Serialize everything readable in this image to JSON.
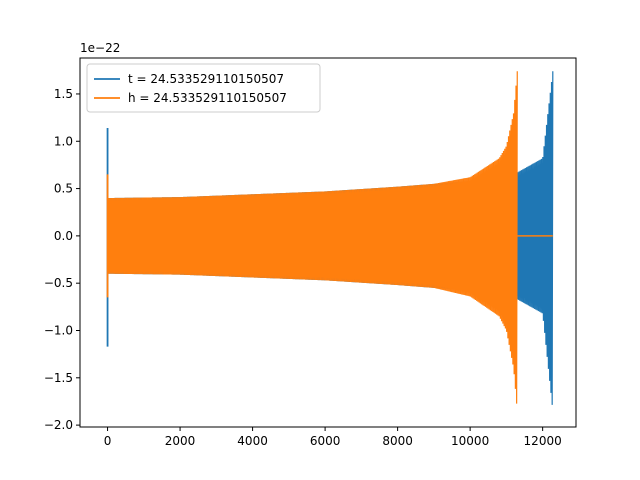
{
  "chart_data": {
    "type": "line",
    "title": "",
    "xlabel": "",
    "ylabel": "",
    "y_offset_label": "1e−22",
    "xlim": [
      -760,
      12920
    ],
    "ylim": [
      -2.02,
      1.88
    ],
    "x_ticks": [
      0,
      2000,
      4000,
      6000,
      8000,
      10000,
      12000
    ],
    "x_tick_labels": [
      "0",
      "2000",
      "4000",
      "6000",
      "8000",
      "10000",
      "12000"
    ],
    "y_ticks": [
      -2.0,
      -1.5,
      -1.0,
      -0.5,
      0.0,
      0.5,
      1.0,
      1.5
    ],
    "y_tick_labels": [
      "−2.0",
      "−1.5",
      "−1.0",
      "−0.5",
      "0.0",
      "0.5",
      "1.0",
      "1.5"
    ],
    "grid": false,
    "legend_position": "top-left",
    "series": [
      {
        "name": "t = 24.533529110150507",
        "color": "#1f77b4",
        "envelope": {
          "x": [
            0,
            2000,
            4000,
            6000,
            8000,
            10000,
            11300,
            12000,
            12280
          ],
          "upper": [
            0.4,
            0.41,
            0.44,
            0.47,
            0.52,
            0.58,
            0.67,
            0.82,
            1.74
          ],
          "lower": [
            -0.4,
            -0.41,
            -0.44,
            -0.47,
            -0.52,
            -0.58,
            -0.67,
            -0.82,
            -1.85
          ]
        },
        "spike": {
          "x": 0,
          "max": 1.14,
          "min": -1.17
        },
        "end_x": 12280
      },
      {
        "name": "h = 24.533529110150507",
        "color": "#ff7f0e",
        "envelope": {
          "x": [
            0,
            2000,
            4000,
            6000,
            8000,
            9000,
            10000,
            10800,
            11000,
            11200,
            11300
          ],
          "upper": [
            0.4,
            0.41,
            0.44,
            0.47,
            0.52,
            0.55,
            0.62,
            0.82,
            0.95,
            1.3,
            1.74
          ],
          "lower": [
            -0.4,
            -0.41,
            -0.44,
            -0.47,
            -0.52,
            -0.55,
            -0.64,
            -0.85,
            -1.0,
            -1.4,
            -1.85
          ]
        },
        "spike": {
          "x": 0,
          "max": 0.65,
          "min": -0.65
        },
        "end_x": 11300,
        "flat_until": 12280
      }
    ]
  }
}
